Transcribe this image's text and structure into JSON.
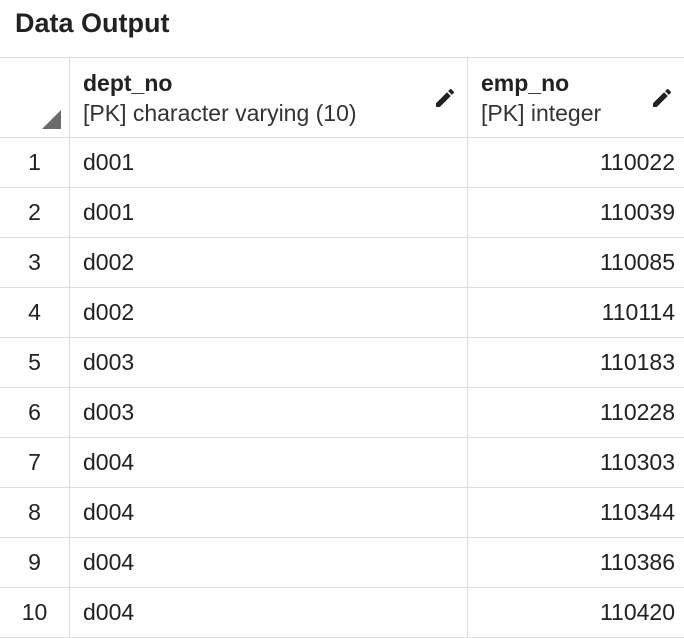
{
  "panel": {
    "title": "Data Output"
  },
  "columns": [
    {
      "name": "dept_no",
      "type": "[PK] character varying (10)",
      "edit_icon": "pencil-icon"
    },
    {
      "name": "emp_no",
      "type": "[PK] integer",
      "edit_icon": "pencil-icon"
    }
  ],
  "rows": [
    {
      "num": "1",
      "dept_no": "d001",
      "emp_no": "110022"
    },
    {
      "num": "2",
      "dept_no": "d001",
      "emp_no": "110039"
    },
    {
      "num": "3",
      "dept_no": "d002",
      "emp_no": "110085"
    },
    {
      "num": "4",
      "dept_no": "d002",
      "emp_no": "110114"
    },
    {
      "num": "5",
      "dept_no": "d003",
      "emp_no": "110183"
    },
    {
      "num": "6",
      "dept_no": "d003",
      "emp_no": "110228"
    },
    {
      "num": "7",
      "dept_no": "d004",
      "emp_no": "110303"
    },
    {
      "num": "8",
      "dept_no": "d004",
      "emp_no": "110344"
    },
    {
      "num": "9",
      "dept_no": "d004",
      "emp_no": "110386"
    },
    {
      "num": "10",
      "dept_no": "d004",
      "emp_no": "110420"
    }
  ]
}
